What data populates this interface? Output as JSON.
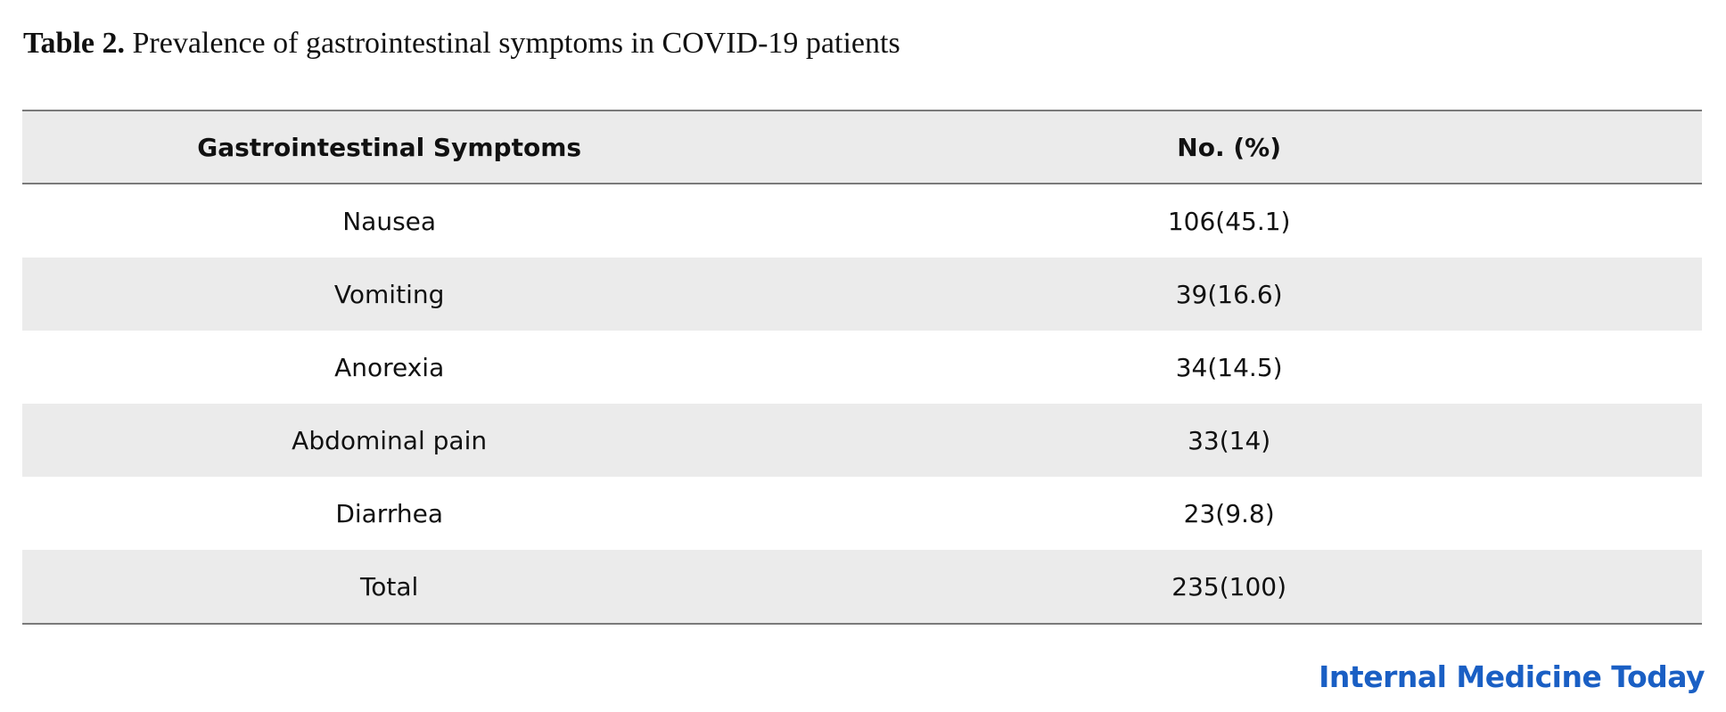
{
  "caption": {
    "label": "Table 2.",
    "text": "Prevalence of gastrointestinal symptoms in COVID-19 patients"
  },
  "table": {
    "headers": [
      "Gastrointestinal Symptoms",
      "No. (%)"
    ],
    "rows": [
      [
        "Nausea",
        "106(45.1)"
      ],
      [
        "Vomiting",
        "39(16.6)"
      ],
      [
        "Anorexia",
        "34(14.5)"
      ],
      [
        "Abdominal pain",
        "33(14)"
      ],
      [
        "Diarrhea",
        "23(9.8)"
      ],
      [
        "Total",
        "235(100)"
      ]
    ]
  },
  "brand": {
    "text": "Internal Medicine Today",
    "color": "#1a5fc4"
  }
}
